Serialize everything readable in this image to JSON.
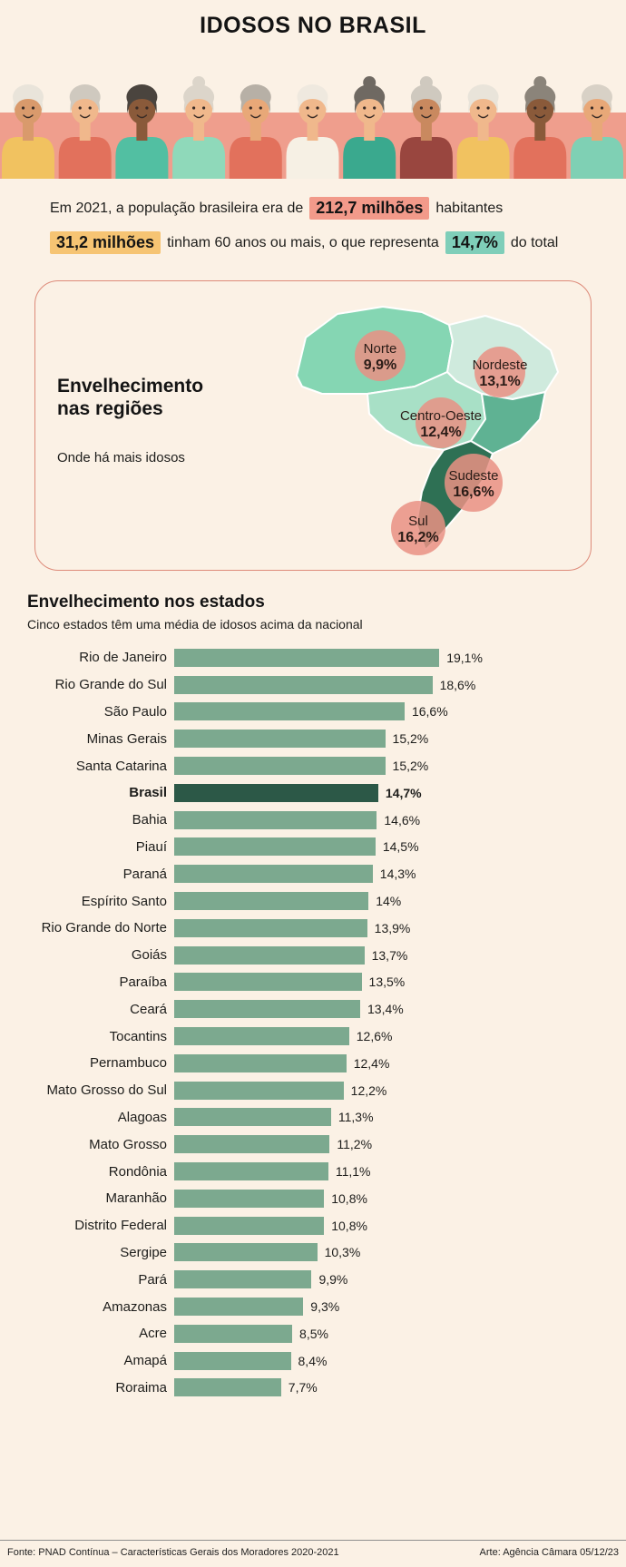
{
  "page": {
    "title": "IDOSOS NO BRASIL",
    "background": "#fbf1e5"
  },
  "header": {
    "band_color": "#ef9e8d",
    "people": [
      {
        "skin": "#d99a6c",
        "hair": "#e9e4da",
        "shirt": "#f1c260",
        "bun": false
      },
      {
        "skin": "#f0b88c",
        "hair": "#cfc9bf",
        "shirt": "#e2715c",
        "bun": false
      },
      {
        "skin": "#8a5a3a",
        "hair": "#4a443e",
        "shirt": "#52bfa2",
        "bun": false
      },
      {
        "skin": "#f0b88c",
        "hair": "#dcd5ca",
        "shirt": "#8fd9ba",
        "bun": true
      },
      {
        "skin": "#e8a878",
        "hair": "#b7b0a6",
        "shirt": "#e2715c",
        "bun": false
      },
      {
        "skin": "#f0b88c",
        "hair": "#efe9df",
        "shirt": "#f6f0e4",
        "bun": false
      },
      {
        "skin": "#f0b88c",
        "hair": "#6f6962",
        "shirt": "#3aa98e",
        "bun": true
      },
      {
        "skin": "#c9895f",
        "hair": "#cfc9bf",
        "shirt": "#99463f",
        "bun": true
      },
      {
        "skin": "#f0b88c",
        "hair": "#e9e4da",
        "shirt": "#f1c260",
        "bun": false
      },
      {
        "skin": "#8a5a3a",
        "hair": "#8b847a",
        "shirt": "#e2715c",
        "bun": true
      },
      {
        "skin": "#e8a878",
        "hair": "#d8d1c6",
        "shirt": "#7fd0b4",
        "bun": false
      }
    ]
  },
  "intro": {
    "line1_pre": "Em 2021, a população brasileira era de",
    "line1_highlight": "212,7 milhões",
    "line1_post": "habitantes",
    "line2_highlight1": "31,2 milhões",
    "line2_mid": "tinham 60 anos ou mais, o que representa",
    "line2_highlight2": "14,7%",
    "line2_post": "do total",
    "highlight_colors": {
      "salmon": "#f29a8a",
      "orange": "#f6c473",
      "teal": "#7fceb9"
    }
  },
  "regions_box": {
    "title_line1": "Envelhecimento",
    "title_line2": "nas regiões",
    "subtitle": "Onde há mais idosos",
    "border_color": "#dd8a79",
    "map_colors": {
      "norte": "#85d6b3",
      "nordeste": "#cfeadd",
      "centro_oeste": "#a8e0c6",
      "sudeste": "#5fb293",
      "sul": "#2e7054",
      "circle": "#e99184"
    },
    "regions": [
      {
        "name": "Norte",
        "value": "9,9%"
      },
      {
        "name": "Nordeste",
        "value": "13,1%"
      },
      {
        "name": "Centro-Oeste",
        "value": "12,4%"
      },
      {
        "name": "Sudeste",
        "value": "16,6%"
      },
      {
        "name": "Sul",
        "value": "16,2%"
      }
    ]
  },
  "states_section": {
    "title": "Envelhecimento nos estados",
    "subtitle": "Cinco estados têm uma média de idosos acima da nacional"
  },
  "chart_data": {
    "type": "bar",
    "orientation": "horizontal",
    "title": "Envelhecimento nos estados",
    "xlabel": "",
    "ylabel": "",
    "xlim": [
      0,
      19.1
    ],
    "grid": false,
    "bar_color": "#7ca98f",
    "highlight_color": "#2c5847",
    "highlight_category": "Brasil",
    "categories": [
      "Rio de Janeiro",
      "Rio Grande do Sul",
      "São Paulo",
      "Minas Gerais",
      "Santa Catarina",
      "Brasil",
      "Bahia",
      "Piauí",
      "Paraná",
      "Espírito Santo",
      "Rio Grande do Norte",
      "Goiás",
      "Paraíba",
      "Ceará",
      "Tocantins",
      "Pernambuco",
      "Mato Grosso do Sul",
      "Alagoas",
      "Mato Grosso",
      "Rondônia",
      "Maranhão",
      "Distrito Federal",
      "Sergipe",
      "Pará",
      "Amazonas",
      "Acre",
      "Amapá",
      "Roraima"
    ],
    "values": [
      19.1,
      18.6,
      16.6,
      15.2,
      15.2,
      14.7,
      14.6,
      14.5,
      14.3,
      14.0,
      13.9,
      13.7,
      13.5,
      13.4,
      12.6,
      12.4,
      12.2,
      11.3,
      11.2,
      11.1,
      10.8,
      10.8,
      10.3,
      9.9,
      9.3,
      8.5,
      8.4,
      7.7
    ],
    "value_labels": [
      "19,1%",
      "18,6%",
      "16,6%",
      "15,2%",
      "15,2%",
      "14,7%",
      "14,6%",
      "14,5%",
      "14,3%",
      "14%",
      "13,9%",
      "13,7%",
      "13,5%",
      "13,4%",
      "12,6%",
      "12,4%",
      "12,2%",
      "11,3%",
      "11,2%",
      "11,1%",
      "10,8%",
      "10,8%",
      "10,3%",
      "9,9%",
      "9,3%",
      "8,5%",
      "8,4%",
      "7,7%"
    ]
  },
  "footer": {
    "source": "Fonte: PNAD Contínua – Características Gerais dos Moradores 2020-2021",
    "credit": "Arte: Agência Câmara 05/12/23"
  }
}
